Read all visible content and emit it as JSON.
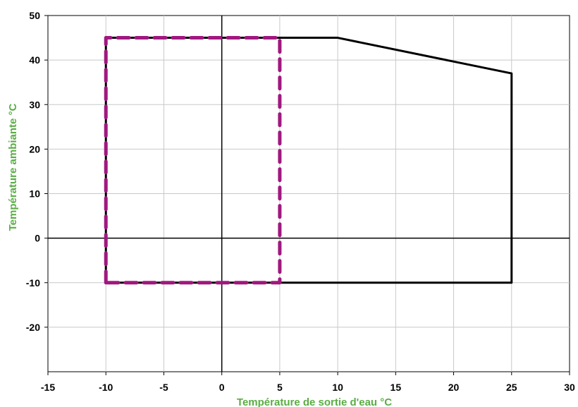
{
  "chart_data": {
    "type": "line",
    "xlabel": "Température de sortie d'eau °C",
    "ylabel": "Température ambiante °C",
    "label_color": "#5aad44",
    "xlim": [
      -15,
      30
    ],
    "ylim": [
      -30,
      50
    ],
    "x_ticks": [
      -15,
      -10,
      -5,
      0,
      5,
      10,
      15,
      20,
      25,
      30
    ],
    "y_ticks": [
      -20,
      -10,
      0,
      10,
      20,
      30,
      40,
      50
    ],
    "grid": true,
    "legend": "none",
    "series": [
      {
        "color": "#000000",
        "style": "solid",
        "points": [
          [
            -10,
            -10
          ],
          [
            -10,
            45
          ],
          [
            10,
            45
          ],
          [
            25,
            37
          ],
          [
            25,
            -10
          ],
          [
            -10,
            -10
          ]
        ]
      },
      {
        "color": "#a0187f",
        "style": "dashed",
        "points": [
          [
            -10,
            -10
          ],
          [
            -10,
            45
          ],
          [
            5,
            45
          ],
          [
            5,
            -10
          ],
          [
            -10,
            -10
          ]
        ]
      }
    ]
  }
}
